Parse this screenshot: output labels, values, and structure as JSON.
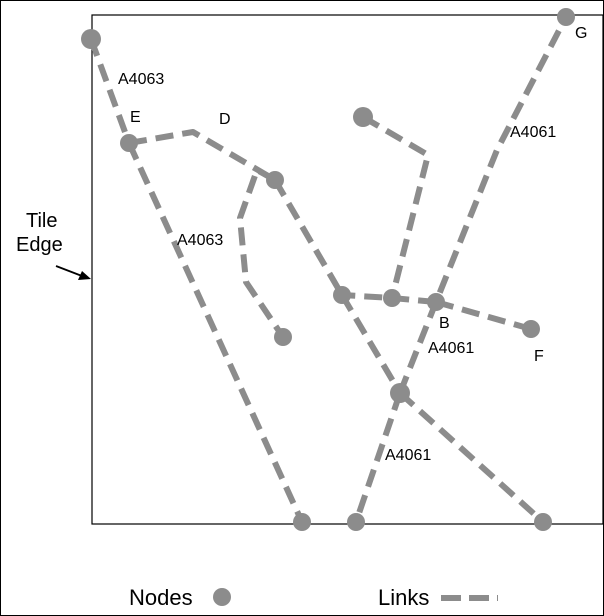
{
  "colors": {
    "node": "#8c8c8c",
    "link": "#8c8c8c",
    "tile": "#000000",
    "text": "#000000"
  },
  "tile_edge": {
    "line1": "Tile",
    "line2": "Edge"
  },
  "node_labels": {
    "E": "E",
    "D": "D",
    "G": "G",
    "B": "B",
    "F": "F"
  },
  "road_labels": {
    "top_left": "A4063",
    "mid_left": "A4063",
    "top_right": "A4061",
    "mid_right": "A4061",
    "bottom": "A4061"
  },
  "legend": {
    "nodes": "Nodes",
    "links": "Links"
  }
}
